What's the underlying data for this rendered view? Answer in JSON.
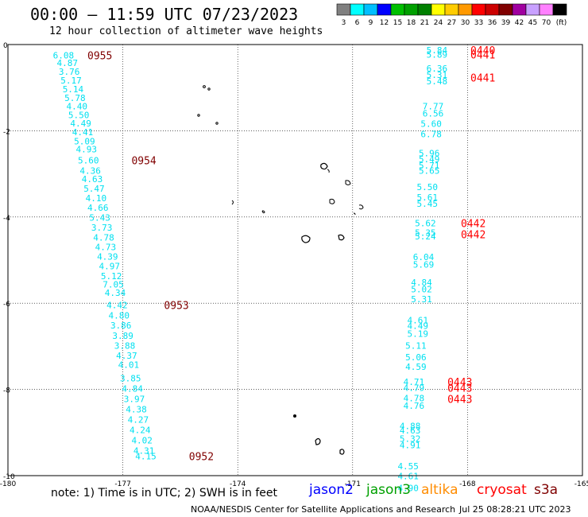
{
  "header": {
    "title": "00:00 — 11:59 UTC 07/23/2023",
    "subtitle": "12 hour collection of altimeter wave heights"
  },
  "colorbar": {
    "colors": [
      "#808080",
      "#00ffff",
      "#00bfff",
      "#0000ff",
      "#00bf00",
      "#00a000",
      "#008000",
      "#ffff00",
      "#ffcc00",
      "#ff9900",
      "#ff0000",
      "#cc0000",
      "#800000",
      "#a000a0",
      "#c8a0ff",
      "#ff80ff",
      "#000000"
    ],
    "labels": [
      "3",
      "6",
      "9",
      "12",
      "15",
      "18",
      "21",
      "24",
      "27",
      "30",
      "33",
      "36",
      "39",
      "42",
      "45",
      "70",
      "(ft)"
    ]
  },
  "footer": {
    "note": "note: 1) Time is in UTC; 2) SWH is in feet",
    "satellites": [
      {
        "name": "jason2",
        "color": "#0000ff"
      },
      {
        "name": "jason3",
        "color": "#00a000"
      },
      {
        "name": "altika",
        "color": "#ff8c00"
      },
      {
        "name": "cryosat",
        "color": "#ff0000"
      },
      {
        "name": "s3a",
        "color": "#800000"
      }
    ],
    "credit": "NOAA/NESDIS Center for Satellite Applications and Research",
    "timestamp": "Jul 25 08:28:21 UTC 2023"
  },
  "chart_data": {
    "type": "scatter",
    "title": "00:00 — 11:59 UTC 07/23/2023",
    "subtitle": "12 hour collection of altimeter wave heights",
    "xlabel": "",
    "ylabel": "",
    "xlim": [
      -180,
      -165
    ],
    "ylim": [
      -10,
      0
    ],
    "x_ticks": [
      "-180",
      "-177",
      "-174",
      "-171",
      "-168",
      "-165"
    ],
    "y_ticks": [
      "-10",
      "-8",
      "-6",
      "-4",
      "-2",
      "0"
    ],
    "grid": true,
    "series": [
      {
        "color": "#00e0f0",
        "points": [
          {
            "x": -178.55,
            "y": -0.25,
            "label": "6.08"
          },
          {
            "x": -178.45,
            "y": -0.42,
            "label": "4.87"
          },
          {
            "x": -178.4,
            "y": -0.63,
            "label": "3.76"
          },
          {
            "x": -178.35,
            "y": -0.83,
            "label": "5.17"
          },
          {
            "x": -178.3,
            "y": -1.03,
            "label": "5.14"
          },
          {
            "x": -178.25,
            "y": -1.24,
            "label": "5.78"
          },
          {
            "x": -178.2,
            "y": -1.43,
            "label": "4.40"
          },
          {
            "x": -178.15,
            "y": -1.63,
            "label": "5.50"
          },
          {
            "x": -178.1,
            "y": -1.83,
            "label": "4.49"
          },
          {
            "x": -178.05,
            "y": -2.03,
            "label": "4.41"
          },
          {
            "x": -178.0,
            "y": -2.24,
            "label": "5.09"
          },
          {
            "x": -177.95,
            "y": -2.43,
            "label": "4.93"
          },
          {
            "x": -177.9,
            "y": -2.68,
            "label": "5.60"
          },
          {
            "x": -177.85,
            "y": -2.92,
            "label": "4.36"
          },
          {
            "x": -177.8,
            "y": -3.12,
            "label": "4.63"
          },
          {
            "x": -177.75,
            "y": -3.34,
            "label": "5.47"
          },
          {
            "x": -177.7,
            "y": -3.56,
            "label": "4.10"
          },
          {
            "x": -177.65,
            "y": -3.78,
            "label": "4.66"
          },
          {
            "x": -177.6,
            "y": -4.01,
            "label": "5.43"
          },
          {
            "x": -177.55,
            "y": -4.24,
            "label": "3.73"
          },
          {
            "x": -177.5,
            "y": -4.47,
            "label": "4.78"
          },
          {
            "x": -177.45,
            "y": -4.7,
            "label": "4.73"
          },
          {
            "x": -177.4,
            "y": -4.92,
            "label": "4.39"
          },
          {
            "x": -177.35,
            "y": -5.14,
            "label": "4.97"
          },
          {
            "x": -177.3,
            "y": -5.37,
            "label": "5.12"
          },
          {
            "x": -177.25,
            "y": -5.56,
            "label": "7.05"
          },
          {
            "x": -177.2,
            "y": -5.76,
            "label": "4.34"
          },
          {
            "x": -177.15,
            "y": -6.04,
            "label": "4.42"
          },
          {
            "x": -177.1,
            "y": -6.28,
            "label": "4.80"
          },
          {
            "x": -177.05,
            "y": -6.51,
            "label": "3.86"
          },
          {
            "x": -177.0,
            "y": -6.75,
            "label": "3.89"
          },
          {
            "x": -176.95,
            "y": -6.98,
            "label": "3.88"
          },
          {
            "x": -176.9,
            "y": -7.21,
            "label": "4.37"
          },
          {
            "x": -176.85,
            "y": -7.43,
            "label": "4.01"
          },
          {
            "x": -176.8,
            "y": -7.74,
            "label": "3.85"
          },
          {
            "x": -176.75,
            "y": -7.98,
            "label": "4.84"
          },
          {
            "x": -176.7,
            "y": -8.22,
            "label": "3.97"
          },
          {
            "x": -176.65,
            "y": -8.46,
            "label": "4.38"
          },
          {
            "x": -176.6,
            "y": -8.7,
            "label": "4.27"
          },
          {
            "x": -176.55,
            "y": -8.94,
            "label": "4.24"
          },
          {
            "x": -176.5,
            "y": -9.18,
            "label": "4.02"
          },
          {
            "x": -176.45,
            "y": -9.42,
            "label": "4.31"
          },
          {
            "x": -176.4,
            "y": -9.55,
            "label": "4.15"
          },
          {
            "x": -168.8,
            "y": -0.13,
            "label": "5.84"
          },
          {
            "x": -168.8,
            "y": -0.23,
            "label": "5.89"
          },
          {
            "x": -168.8,
            "y": -0.55,
            "label": "6.36"
          },
          {
            "x": -168.8,
            "y": -0.7,
            "label": "5.31"
          },
          {
            "x": -168.8,
            "y": -0.85,
            "label": "5.48"
          },
          {
            "x": -168.9,
            "y": -1.43,
            "label": "7.77"
          },
          {
            "x": -168.9,
            "y": -1.6,
            "label": "6.56"
          },
          {
            "x": -168.95,
            "y": -1.84,
            "label": "5.60"
          },
          {
            "x": -168.95,
            "y": -2.08,
            "label": "6.78"
          },
          {
            "x": -169.0,
            "y": -2.52,
            "label": "5.96"
          },
          {
            "x": -169.0,
            "y": -2.66,
            "label": "5.49"
          },
          {
            "x": -169.0,
            "y": -2.8,
            "label": "5.71"
          },
          {
            "x": -169.0,
            "y": -2.92,
            "label": "5.65"
          },
          {
            "x": -169.05,
            "y": -3.3,
            "label": "5.50"
          },
          {
            "x": -169.05,
            "y": -3.54,
            "label": "5.61"
          },
          {
            "x": -169.05,
            "y": -3.69,
            "label": "5.45"
          },
          {
            "x": -169.1,
            "y": -4.14,
            "label": "5.62"
          },
          {
            "x": -169.1,
            "y": -4.36,
            "label": "5.35"
          },
          {
            "x": -169.1,
            "y": -4.45,
            "label": "5.24"
          },
          {
            "x": -169.15,
            "y": -4.93,
            "label": "6.04"
          },
          {
            "x": -169.15,
            "y": -5.1,
            "label": "5.69"
          },
          {
            "x": -169.2,
            "y": -5.52,
            "label": "4.84"
          },
          {
            "x": -169.2,
            "y": -5.67,
            "label": "5.02"
          },
          {
            "x": -169.2,
            "y": -5.9,
            "label": "5.31"
          },
          {
            "x": -169.3,
            "y": -6.39,
            "label": "4.61"
          },
          {
            "x": -169.3,
            "y": -6.52,
            "label": "4.49"
          },
          {
            "x": -169.3,
            "y": -6.71,
            "label": "5.19"
          },
          {
            "x": -169.35,
            "y": -6.98,
            "label": "5.11"
          },
          {
            "x": -169.35,
            "y": -7.25,
            "label": "5.06"
          },
          {
            "x": -169.35,
            "y": -7.47,
            "label": "4.59"
          },
          {
            "x": -169.4,
            "y": -7.82,
            "label": "4.71"
          },
          {
            "x": -169.4,
            "y": -7.96,
            "label": "4.79"
          },
          {
            "x": -169.4,
            "y": -8.2,
            "label": "4.78"
          },
          {
            "x": -169.4,
            "y": -8.38,
            "label": "4.76"
          },
          {
            "x": -169.5,
            "y": -8.85,
            "label": "4.88"
          },
          {
            "x": -169.5,
            "y": -8.95,
            "label": "4.63"
          },
          {
            "x": -169.5,
            "y": -9.14,
            "label": "5.32"
          },
          {
            "x": -169.5,
            "y": -9.29,
            "label": "4.91"
          },
          {
            "x": -169.55,
            "y": -9.78,
            "label": "4.55"
          },
          {
            "x": -169.55,
            "y": -10.01,
            "label": "4.61"
          },
          {
            "x": -169.55,
            "y": -10.29,
            "label": "4.90"
          }
        ]
      }
    ],
    "time_labels": [
      {
        "x": -177.6,
        "y": -0.25,
        "label": "0955",
        "color": "#800000"
      },
      {
        "x": -176.45,
        "y": -2.68,
        "label": "0954",
        "color": "#800000"
      },
      {
        "x": -175.6,
        "y": -6.04,
        "label": "0953",
        "color": "#800000"
      },
      {
        "x": -174.95,
        "y": -9.55,
        "label": "0952",
        "color": "#800000"
      },
      {
        "x": -167.6,
        "y": -0.13,
        "label": "0440",
        "color": "#ff0000"
      },
      {
        "x": -167.6,
        "y": -0.23,
        "label": "0441",
        "color": "#ff0000"
      },
      {
        "x": -167.6,
        "y": -0.77,
        "label": "0441",
        "color": "#ff0000"
      },
      {
        "x": -167.85,
        "y": -4.14,
        "label": "0442",
        "color": "#ff0000"
      },
      {
        "x": -167.85,
        "y": -4.4,
        "label": "0442",
        "color": "#ff0000"
      },
      {
        "x": -168.2,
        "y": -7.82,
        "label": "0443",
        "color": "#ff0000"
      },
      {
        "x": -168.2,
        "y": -7.96,
        "label": "0443",
        "color": "#ff0000"
      },
      {
        "x": -168.2,
        "y": -8.22,
        "label": "0443",
        "color": "#ff0000"
      }
    ]
  }
}
